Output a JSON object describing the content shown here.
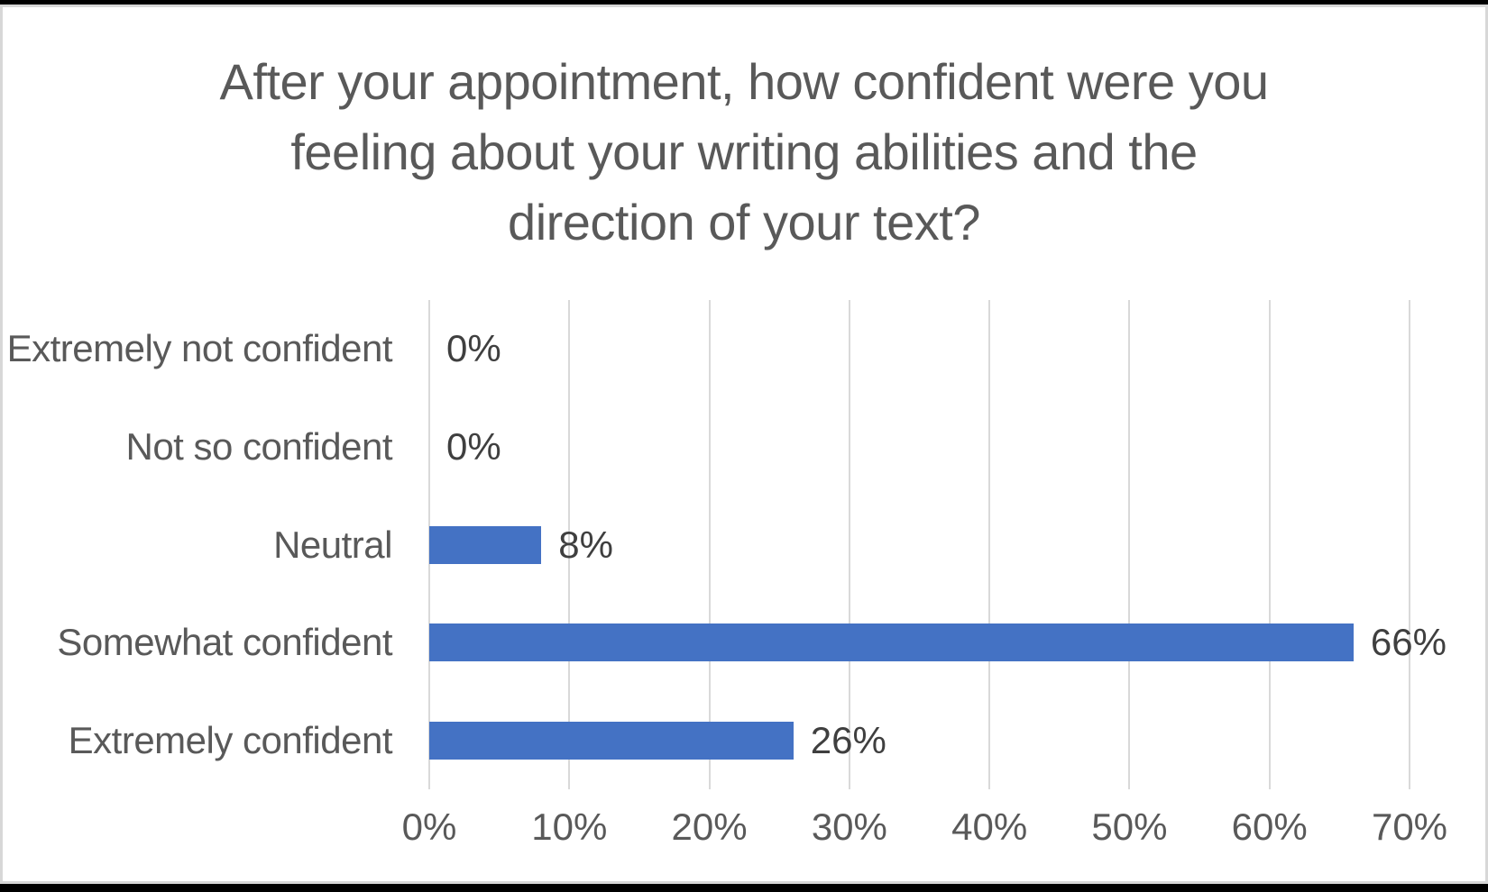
{
  "chart_data": {
    "type": "bar",
    "orientation": "horizontal",
    "title": "After your appointment, how confident were you feeling about your writing abilities and the direction of your text?",
    "title_lines": [
      "After your appointment, how confident were you",
      "feeling about your writing abilities and the",
      "direction of your text?"
    ],
    "categories": [
      "Extremely not confident",
      "Not so confident",
      "Neutral",
      "Somewhat confident",
      "Extremely confident"
    ],
    "values": [
      0,
      0,
      8,
      66,
      26
    ],
    "value_labels": [
      "0%",
      "0%",
      "8%",
      "66%",
      "26%"
    ],
    "xlabel": "",
    "ylabel": "",
    "xlim": [
      0,
      70
    ],
    "x_ticks": [
      "0%",
      "10%",
      "20%",
      "30%",
      "40%",
      "50%",
      "60%",
      "70%"
    ],
    "grid": true,
    "legend": false,
    "colors": {
      "bar": "#4472C4",
      "gridline": "#D9D9D9",
      "title_text": "#595959",
      "axis_text": "#595959",
      "data_label_text": "#3F3F3F",
      "chart_border": "#D7D7D7",
      "frame": "#000000",
      "background": "#FFFFFF"
    }
  }
}
